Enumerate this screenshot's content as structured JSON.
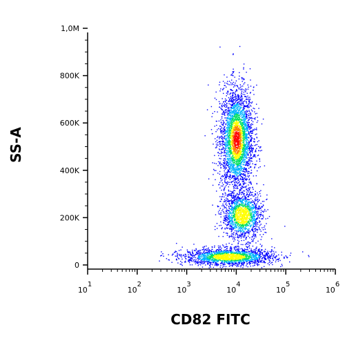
{
  "chart_data": {
    "type": "scatter",
    "subtype": "flow-cytometry-density-dot-plot",
    "title": "",
    "xlabel": "CD82 FITC",
    "ylabel": "SS-A",
    "x_scale": "log",
    "xlim": [
      10,
      1000000
    ],
    "ylim": [
      0,
      1000000
    ],
    "x_ticks": [
      {
        "value": 10,
        "base": "10",
        "exp": "1"
      },
      {
        "value": 100,
        "base": "10",
        "exp": "2"
      },
      {
        "value": 1000,
        "base": "10",
        "exp": "3"
      },
      {
        "value": 10000,
        "base": "10",
        "exp": "4"
      },
      {
        "value": 100000,
        "base": "10",
        "exp": "5"
      },
      {
        "value": 1000000,
        "base": "10",
        "exp": "6"
      }
    ],
    "y_ticks": [
      {
        "value": 0,
        "label": "0"
      },
      {
        "value": 200000,
        "label": "200K"
      },
      {
        "value": 400000,
        "label": "400K"
      },
      {
        "value": 600000,
        "label": "600K"
      },
      {
        "value": 800000,
        "label": "800K"
      },
      {
        "value": 1000000,
        "label": "1,0M"
      }
    ],
    "populations": [
      {
        "x_center": 10000,
        "y_center": 560000,
        "x_spread_decades": 0.17,
        "y_spread": 110000
      },
      {
        "x_center": 13000,
        "y_center": 240000,
        "x_spread_decades": 0.2,
        "y_spread": 50000
      },
      {
        "x_center": 7000,
        "y_center": 65000,
        "x_spread_decades": 0.45,
        "y_spread": 18000
      }
    ],
    "color_scale": [
      "#0000ff",
      "#00b4ff",
      "#00e060",
      "#ffff00",
      "#ff8000",
      "#ff0000"
    ],
    "grid": false,
    "legend": "none"
  }
}
